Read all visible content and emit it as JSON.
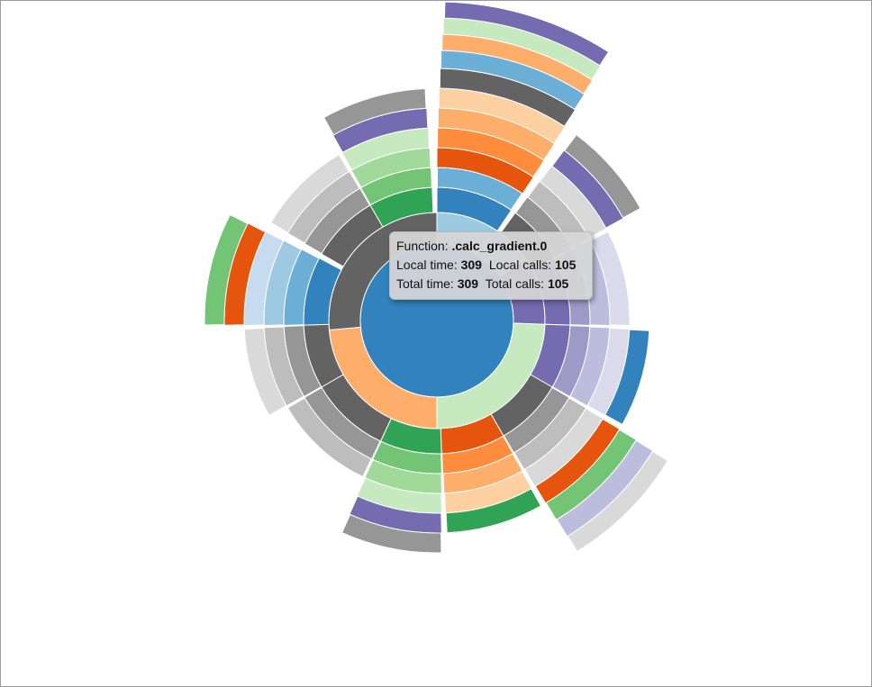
{
  "tooltip": {
    "function_label": "Function:",
    "function_name": ".calc_gradient.0",
    "local_time_label": "Local time:",
    "local_time_value": "309",
    "local_calls_label": "Local calls:",
    "local_calls_value": "105",
    "total_time_label": "Total time:",
    "total_time_value": "309",
    "total_calls_label": "Total calls:",
    "total_calls_value": "105"
  },
  "palette": {
    "blue": [
      "#3182bd",
      "#6baed6",
      "#9ecae1",
      "#c6dbef"
    ],
    "orange": [
      "#e6550d",
      "#fd8d3c",
      "#fdae6b",
      "#fdd0a2"
    ],
    "green": [
      "#31a354",
      "#74c476",
      "#a1d99b",
      "#c7e9c0"
    ],
    "purple": [
      "#756bb1",
      "#9e9ac8",
      "#bcbddc",
      "#dadaeb"
    ],
    "gray": [
      "#636363",
      "#969696",
      "#bdbdbd",
      "#d9d9d9"
    ]
  }
}
